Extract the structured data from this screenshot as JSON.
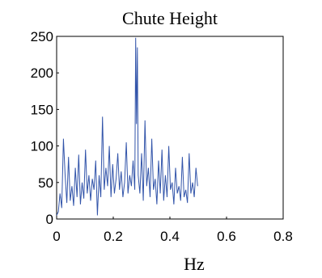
{
  "chart_data": {
    "type": "line",
    "title": "Chute Height",
    "xlabel": "Hz",
    "ylabel": "",
    "xlim": [
      0,
      0.8
    ],
    "ylim": [
      0,
      250
    ],
    "xticks": [
      0,
      0.2,
      0.4,
      0.6,
      0.8
    ],
    "xtick_labels": [
      "0",
      "0.2",
      "0.4",
      "0.6",
      "0.8"
    ],
    "yticks": [
      0,
      50,
      100,
      150,
      200,
      250
    ],
    "ytick_labels": [
      "0",
      "50",
      "100",
      "150",
      "200",
      "250"
    ],
    "grid": false,
    "line_color": "#3355aa",
    "series": [
      {
        "x": [
          0,
          0.006,
          0.012,
          0.018,
          0.024,
          0.03,
          0.036,
          0.042,
          0.048,
          0.054,
          0.06,
          0.066,
          0.072,
          0.078,
          0.084,
          0.09,
          0.096,
          0.102,
          0.108,
          0.114,
          0.12,
          0.126,
          0.132,
          0.138,
          0.144,
          0.15,
          0.156,
          0.162,
          0.168,
          0.174,
          0.18,
          0.186,
          0.192,
          0.198,
          0.204,
          0.21,
          0.216,
          0.222,
          0.228,
          0.234,
          0.24,
          0.246,
          0.252,
          0.258,
          0.264,
          0.27,
          0.276,
          0.279,
          0.282,
          0.285,
          0.288,
          0.294,
          0.3,
          0.306,
          0.312,
          0.318,
          0.324,
          0.33,
          0.336,
          0.342,
          0.348,
          0.354,
          0.36,
          0.366,
          0.372,
          0.378,
          0.384,
          0.39,
          0.396,
          0.402,
          0.408,
          0.414,
          0.42,
          0.426,
          0.432,
          0.438,
          0.444,
          0.45,
          0.456,
          0.462,
          0.468,
          0.474,
          0.48,
          0.486,
          0.492,
          0.498
        ],
        "values": [
          5,
          10,
          35,
          15,
          110,
          60,
          22,
          85,
          25,
          45,
          18,
          70,
          30,
          88,
          20,
          50,
          28,
          95,
          35,
          60,
          25,
          55,
          40,
          80,
          5,
          60,
          30,
          140,
          40,
          70,
          45,
          100,
          30,
          75,
          35,
          55,
          90,
          40,
          65,
          30,
          50,
          105,
          35,
          60,
          45,
          80,
          40,
          248,
          130,
          235,
          60,
          35,
          90,
          25,
          135,
          45,
          70,
          30,
          110,
          40,
          55,
          20,
          80,
          35,
          95,
          25,
          60,
          30,
          100,
          40,
          50,
          20,
          70,
          35,
          45,
          25,
          85,
          30,
          40,
          22,
          90,
          35,
          50,
          30,
          70,
          45
        ]
      }
    ]
  }
}
